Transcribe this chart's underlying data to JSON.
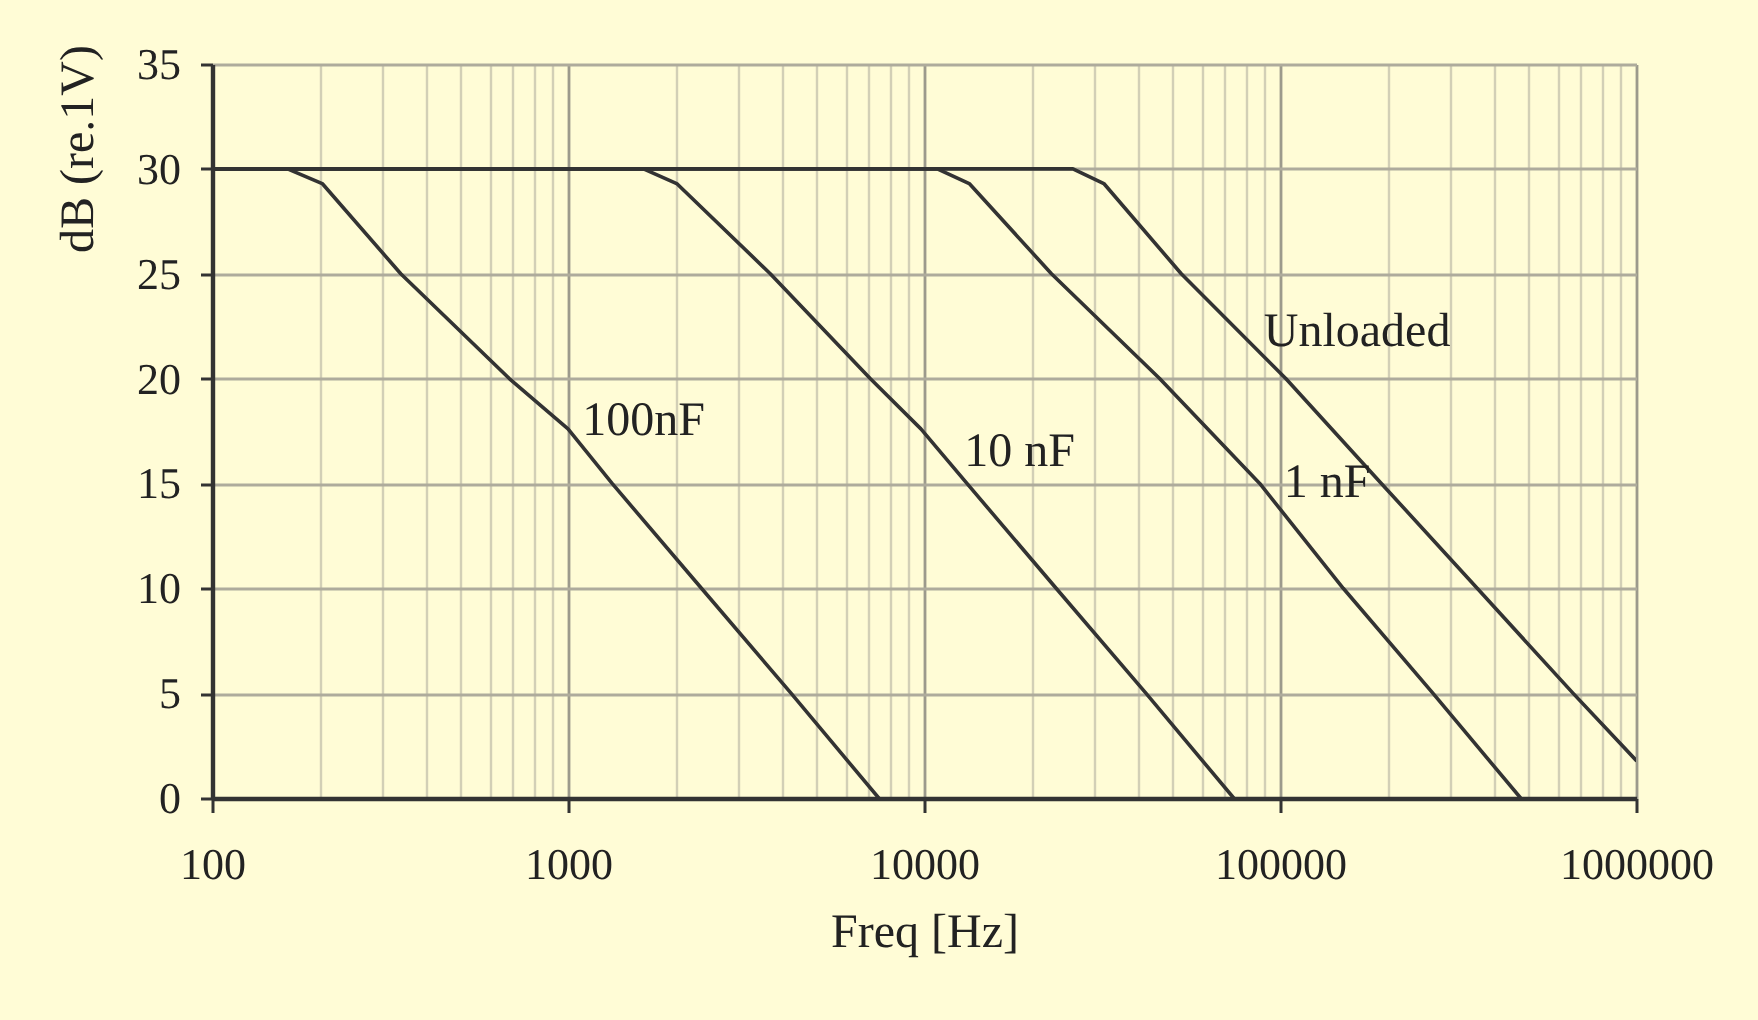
{
  "chart_data": {
    "type": "line",
    "xlabel": "Freq [Hz]",
    "ylabel": "dB (re.1V)",
    "log": "x",
    "grid": true,
    "xlim": [
      100,
      1000000
    ],
    "ylim": [
      0,
      35
    ],
    "xticks": [
      100,
      1000,
      10000,
      100000,
      1000000
    ],
    "yticks": [
      0,
      5,
      10,
      15,
      20,
      25,
      30,
      35
    ],
    "series": [
      {
        "color": "#333333",
        "x": [
          100,
          163,
          204,
          339,
          684,
          1000,
          1330,
          2370,
          4230,
          7460
        ],
        "values": [
          30,
          30,
          29.3,
          25,
          20,
          17.6,
          15,
          10,
          5,
          0
        ]
      },
      {
        "color": "#333333",
        "x": [
          100,
          1630,
          2020,
          3700,
          7060,
          9800,
          13200,
          23500,
          42000,
          74100
        ],
        "values": [
          30,
          30,
          29.3,
          25,
          20,
          17.6,
          15,
          10,
          5,
          0
        ]
      },
      {
        "color": "#333333",
        "x": [
          100,
          10900,
          13400,
          22800,
          45900,
          87700,
          150500,
          268700,
          474000
        ],
        "values": [
          30,
          30,
          29.3,
          25,
          20,
          15,
          10,
          5,
          0
        ]
      },
      {
        "color": "#333333",
        "x": [
          100,
          26200,
          32000,
          52800,
          103800,
          192600,
          358000,
          665000,
          1000000
        ],
        "values": [
          30,
          30,
          29.3,
          25,
          20,
          15,
          10,
          5,
          1.8
        ]
      }
    ],
    "annotations": [
      {
        "text": "100nF",
        "x": 939,
        "y": 18
      },
      {
        "text": "10 nF",
        "x": 11100,
        "y": 16.5
      },
      {
        "text": "1 nF",
        "x": 87700,
        "y": 15
      },
      {
        "text": "Unloaded",
        "x": 77100,
        "y": 22.2
      }
    ]
  }
}
